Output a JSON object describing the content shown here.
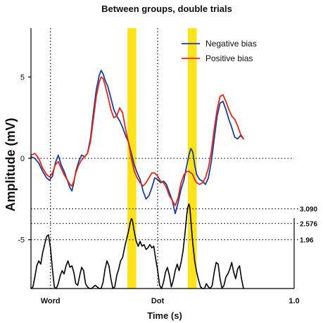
{
  "chart_data": {
    "type": "line",
    "title": "Between groups, double trials",
    "xlabel": "Time (s)",
    "ylabel": "Amplitude (mV)",
    "xlim": [
      -0.35,
      1.0
    ],
    "ylim": [
      -8.0,
      8.0
    ],
    "x_tick_labels": {
      "word": {
        "x": -0.25,
        "label": "Word"
      },
      "dot": {
        "x": 0.3,
        "label": "Dot"
      },
      "end": {
        "x": 1.0,
        "label": "1.0"
      }
    },
    "y_ticks": [
      {
        "value": 5,
        "label": "5"
      },
      {
        "value": 0,
        "label": "0"
      },
      {
        "value": -5,
        "label": "-5"
      }
    ],
    "threshold_lines": [
      {
        "value": -3.1,
        "label": "3.090"
      },
      {
        "value": -4.0,
        "label": "2.576"
      },
      {
        "value": -5.0,
        "label": "1.96"
      }
    ],
    "zero_line": 0,
    "vertical_markers": [
      -0.25,
      0.3
    ],
    "highlight_bands": [
      {
        "x0": 0.145,
        "x1": 0.19,
        "color": "#FFE21A"
      },
      {
        "x0": 0.455,
        "x1": 0.5,
        "color": "#FFE21A"
      }
    ],
    "legend_position": "top-right",
    "series": [
      {
        "name": "Negative bias",
        "color": "#1F3E99",
        "points": [
          [
            -0.35,
            0.1
          ],
          [
            -0.33,
            0.0
          ],
          [
            -0.31,
            -0.3
          ],
          [
            -0.29,
            -0.8
          ],
          [
            -0.27,
            -1.2
          ],
          [
            -0.255,
            -1.35
          ],
          [
            -0.24,
            -1.1
          ],
          [
            -0.225,
            -0.3
          ],
          [
            -0.21,
            0.2
          ],
          [
            -0.195,
            -0.4
          ],
          [
            -0.18,
            -0.8
          ],
          [
            -0.165,
            -1.3
          ],
          [
            -0.15,
            -1.8
          ],
          [
            -0.14,
            -2.0
          ],
          [
            -0.13,
            -1.5
          ],
          [
            -0.12,
            -0.8
          ],
          [
            -0.105,
            -0.2
          ],
          [
            -0.09,
            0.2
          ],
          [
            -0.075,
            0.1
          ],
          [
            -0.06,
            0.3
          ],
          [
            -0.045,
            1.2
          ],
          [
            -0.03,
            2.8
          ],
          [
            -0.015,
            4.2
          ],
          [
            0.0,
            5.1
          ],
          [
            0.01,
            5.4
          ],
          [
            0.02,
            5.2
          ],
          [
            0.03,
            4.8
          ],
          [
            0.045,
            4.4
          ],
          [
            0.06,
            3.7
          ],
          [
            0.075,
            3.0
          ],
          [
            0.09,
            2.6
          ],
          [
            0.105,
            2.3
          ],
          [
            0.12,
            1.9
          ],
          [
            0.135,
            1.4
          ],
          [
            0.15,
            1.0
          ],
          [
            0.165,
            0.3
          ],
          [
            0.18,
            -0.4
          ],
          [
            0.195,
            -0.9
          ],
          [
            0.21,
            -1.3
          ],
          [
            0.225,
            -2.0
          ],
          [
            0.24,
            -2.5
          ],
          [
            0.255,
            -2.3
          ],
          [
            0.27,
            -1.8
          ],
          [
            0.285,
            -1.2
          ],
          [
            0.3,
            -1.3
          ],
          [
            0.315,
            -1.5
          ],
          [
            0.33,
            -1.4
          ],
          [
            0.345,
            -1.6
          ],
          [
            0.36,
            -2.1
          ],
          [
            0.375,
            -2.6
          ],
          [
            0.39,
            -3.4
          ],
          [
            0.405,
            -2.7
          ],
          [
            0.42,
            -1.9
          ],
          [
            0.435,
            -1.3
          ],
          [
            0.45,
            -0.4
          ],
          [
            0.46,
            0.2
          ],
          [
            0.47,
            0.6
          ],
          [
            0.48,
            0.4
          ],
          [
            0.49,
            -0.4
          ],
          [
            0.5,
            -1.0
          ],
          [
            0.515,
            -1.3
          ],
          [
            0.53,
            -1.4
          ],
          [
            0.545,
            -1.6
          ],
          [
            0.56,
            -1.2
          ],
          [
            0.575,
            -0.2
          ],
          [
            0.59,
            1.2
          ],
          [
            0.605,
            2.6
          ],
          [
            0.62,
            3.4
          ],
          [
            0.635,
            3.5
          ],
          [
            0.65,
            3.0
          ],
          [
            0.665,
            2.4
          ],
          [
            0.68,
            1.9
          ],
          [
            0.695,
            1.3
          ],
          [
            0.71,
            1.2
          ],
          [
            0.725,
            1.4
          ],
          [
            0.74,
            1.2
          ]
        ]
      },
      {
        "name": "Positive bias",
        "color": "#E0281E",
        "points": [
          [
            -0.35,
            0.2
          ],
          [
            -0.33,
            0.3
          ],
          [
            -0.31,
            0.0
          ],
          [
            -0.29,
            -0.6
          ],
          [
            -0.27,
            -1.0
          ],
          [
            -0.255,
            -1.15
          ],
          [
            -0.24,
            -0.9
          ],
          [
            -0.225,
            -0.4
          ],
          [
            -0.21,
            -0.2
          ],
          [
            -0.195,
            -0.6
          ],
          [
            -0.18,
            -1.0
          ],
          [
            -0.165,
            -1.3
          ],
          [
            -0.15,
            -1.6
          ],
          [
            -0.14,
            -1.7
          ],
          [
            -0.13,
            -1.4
          ],
          [
            -0.12,
            -0.9
          ],
          [
            -0.105,
            -0.4
          ],
          [
            -0.09,
            -0.1
          ],
          [
            -0.075,
            0.1
          ],
          [
            -0.06,
            0.3
          ],
          [
            -0.045,
            1.0
          ],
          [
            -0.03,
            2.4
          ],
          [
            -0.015,
            3.8
          ],
          [
            0.0,
            4.7
          ],
          [
            0.01,
            5.0
          ],
          [
            0.02,
            4.9
          ],
          [
            0.03,
            4.5
          ],
          [
            0.045,
            3.8
          ],
          [
            0.06,
            3.0
          ],
          [
            0.075,
            2.5
          ],
          [
            0.09,
            2.6
          ],
          [
            0.105,
            3.1
          ],
          [
            0.12,
            2.8
          ],
          [
            0.135,
            1.8
          ],
          [
            0.15,
            1.0
          ],
          [
            0.165,
            0.0
          ],
          [
            0.18,
            -0.8
          ],
          [
            0.195,
            -1.2
          ],
          [
            0.21,
            -1.5
          ],
          [
            0.225,
            -1.7
          ],
          [
            0.24,
            -1.5
          ],
          [
            0.255,
            -1.2
          ],
          [
            0.27,
            -0.9
          ],
          [
            0.285,
            -0.9
          ],
          [
            0.3,
            -1.1
          ],
          [
            0.315,
            -1.4
          ],
          [
            0.33,
            -1.5
          ],
          [
            0.345,
            -1.8
          ],
          [
            0.36,
            -2.3
          ],
          [
            0.375,
            -2.6
          ],
          [
            0.39,
            -2.9
          ],
          [
            0.405,
            -2.4
          ],
          [
            0.42,
            -1.5
          ],
          [
            0.435,
            -1.0
          ],
          [
            0.45,
            -0.8
          ],
          [
            0.46,
            -0.8
          ],
          [
            0.47,
            -0.9
          ],
          [
            0.48,
            -1.0
          ],
          [
            0.49,
            -1.3
          ],
          [
            0.5,
            -1.5
          ],
          [
            0.515,
            -1.6
          ],
          [
            0.53,
            -1.5
          ],
          [
            0.545,
            -1.2
          ],
          [
            0.56,
            -0.6
          ],
          [
            0.575,
            0.4
          ],
          [
            0.59,
            1.8
          ],
          [
            0.605,
            3.0
          ],
          [
            0.62,
            3.8
          ],
          [
            0.635,
            3.9
          ],
          [
            0.65,
            3.5
          ],
          [
            0.665,
            3.0
          ],
          [
            0.68,
            2.6
          ],
          [
            0.695,
            2.4
          ],
          [
            0.71,
            2.0
          ],
          [
            0.725,
            1.5
          ],
          [
            0.74,
            1.2
          ]
        ]
      },
      {
        "name": "",
        "color": "#000000",
        "points": [
          [
            -0.35,
            -8.0
          ],
          [
            -0.34,
            -7.9
          ],
          [
            -0.33,
            -7.3
          ],
          [
            -0.32,
            -6.6
          ],
          [
            -0.31,
            -6.3
          ],
          [
            -0.3,
            -6.5
          ],
          [
            -0.29,
            -5.8
          ],
          [
            -0.28,
            -5.3
          ],
          [
            -0.27,
            -4.8
          ],
          [
            -0.26,
            -4.7
          ],
          [
            -0.25,
            -5.5
          ],
          [
            -0.24,
            -6.8
          ],
          [
            -0.23,
            -7.9
          ],
          [
            -0.22,
            -8.0
          ],
          [
            -0.21,
            -7.7
          ],
          [
            -0.2,
            -7.2
          ],
          [
            -0.19,
            -6.9
          ],
          [
            -0.18,
            -7.1
          ],
          [
            -0.17,
            -6.6
          ],
          [
            -0.16,
            -6.3
          ],
          [
            -0.15,
            -6.7
          ],
          [
            -0.14,
            -6.6
          ],
          [
            -0.13,
            -7.0
          ],
          [
            -0.12,
            -7.7
          ],
          [
            -0.11,
            -7.8
          ],
          [
            -0.1,
            -7.2
          ],
          [
            -0.09,
            -6.7
          ],
          [
            -0.08,
            -6.9
          ],
          [
            -0.07,
            -7.7
          ],
          [
            -0.06,
            -7.9
          ],
          [
            -0.05,
            -8.0
          ],
          [
            -0.04,
            -8.0
          ],
          [
            -0.03,
            -7.9
          ],
          [
            -0.02,
            -7.8
          ],
          [
            -0.01,
            -7.9
          ],
          [
            0.0,
            -8.0
          ],
          [
            0.01,
            -8.0
          ],
          [
            0.02,
            -7.6
          ],
          [
            0.03,
            -6.8
          ],
          [
            0.04,
            -6.3
          ],
          [
            0.05,
            -6.6
          ],
          [
            0.06,
            -7.4
          ],
          [
            0.07,
            -8.0
          ],
          [
            0.08,
            -7.9
          ],
          [
            0.09,
            -7.2
          ],
          [
            0.1,
            -6.8
          ],
          [
            0.11,
            -6.3
          ],
          [
            0.12,
            -6.1
          ],
          [
            0.13,
            -5.5
          ],
          [
            0.14,
            -5.0
          ],
          [
            0.15,
            -4.5
          ],
          [
            0.16,
            -3.9
          ],
          [
            0.165,
            -3.7
          ],
          [
            0.17,
            -3.8
          ],
          [
            0.18,
            -4.5
          ],
          [
            0.19,
            -5.1
          ],
          [
            0.2,
            -5.4
          ],
          [
            0.21,
            -5.1
          ],
          [
            0.22,
            -5.4
          ],
          [
            0.23,
            -5.3
          ],
          [
            0.24,
            -5.6
          ],
          [
            0.25,
            -5.5
          ],
          [
            0.26,
            -5.3
          ],
          [
            0.27,
            -5.5
          ],
          [
            0.28,
            -5.4
          ],
          [
            0.29,
            -6.2
          ],
          [
            0.3,
            -6.9
          ],
          [
            0.31,
            -7.8
          ],
          [
            0.32,
            -8.0
          ],
          [
            0.33,
            -7.6
          ],
          [
            0.34,
            -7.0
          ],
          [
            0.35,
            -6.7
          ],
          [
            0.36,
            -7.2
          ],
          [
            0.37,
            -7.9
          ],
          [
            0.38,
            -7.5
          ],
          [
            0.39,
            -6.9
          ],
          [
            0.4,
            -6.5
          ],
          [
            0.41,
            -6.9
          ],
          [
            0.42,
            -6.4
          ],
          [
            0.43,
            -5.7
          ],
          [
            0.44,
            -4.6
          ],
          [
            0.45,
            -3.4
          ],
          [
            0.455,
            -3.0
          ],
          [
            0.46,
            -2.8
          ],
          [
            0.465,
            -3.0
          ],
          [
            0.47,
            -3.8
          ],
          [
            0.48,
            -5.2
          ],
          [
            0.49,
            -6.3
          ],
          [
            0.5,
            -7.0
          ],
          [
            0.51,
            -7.5
          ],
          [
            0.52,
            -7.9
          ],
          [
            0.53,
            -8.0
          ],
          [
            0.54,
            -8.0
          ],
          [
            0.55,
            -7.7
          ],
          [
            0.56,
            -7.9
          ],
          [
            0.57,
            -8.0
          ],
          [
            0.58,
            -7.8
          ],
          [
            0.59,
            -7.0
          ],
          [
            0.6,
            -6.4
          ],
          [
            0.61,
            -6.5
          ],
          [
            0.62,
            -7.4
          ],
          [
            0.63,
            -8.0
          ],
          [
            0.64,
            -7.8
          ],
          [
            0.65,
            -7.3
          ],
          [
            0.66,
            -7.1
          ],
          [
            0.67,
            -6.8
          ],
          [
            0.68,
            -6.4
          ],
          [
            0.69,
            -7.0
          ],
          [
            0.7,
            -7.4
          ],
          [
            0.71,
            -6.8
          ],
          [
            0.72,
            -6.6
          ],
          [
            0.73,
            -7.4
          ],
          [
            0.74,
            -8.0
          ]
        ]
      }
    ]
  }
}
